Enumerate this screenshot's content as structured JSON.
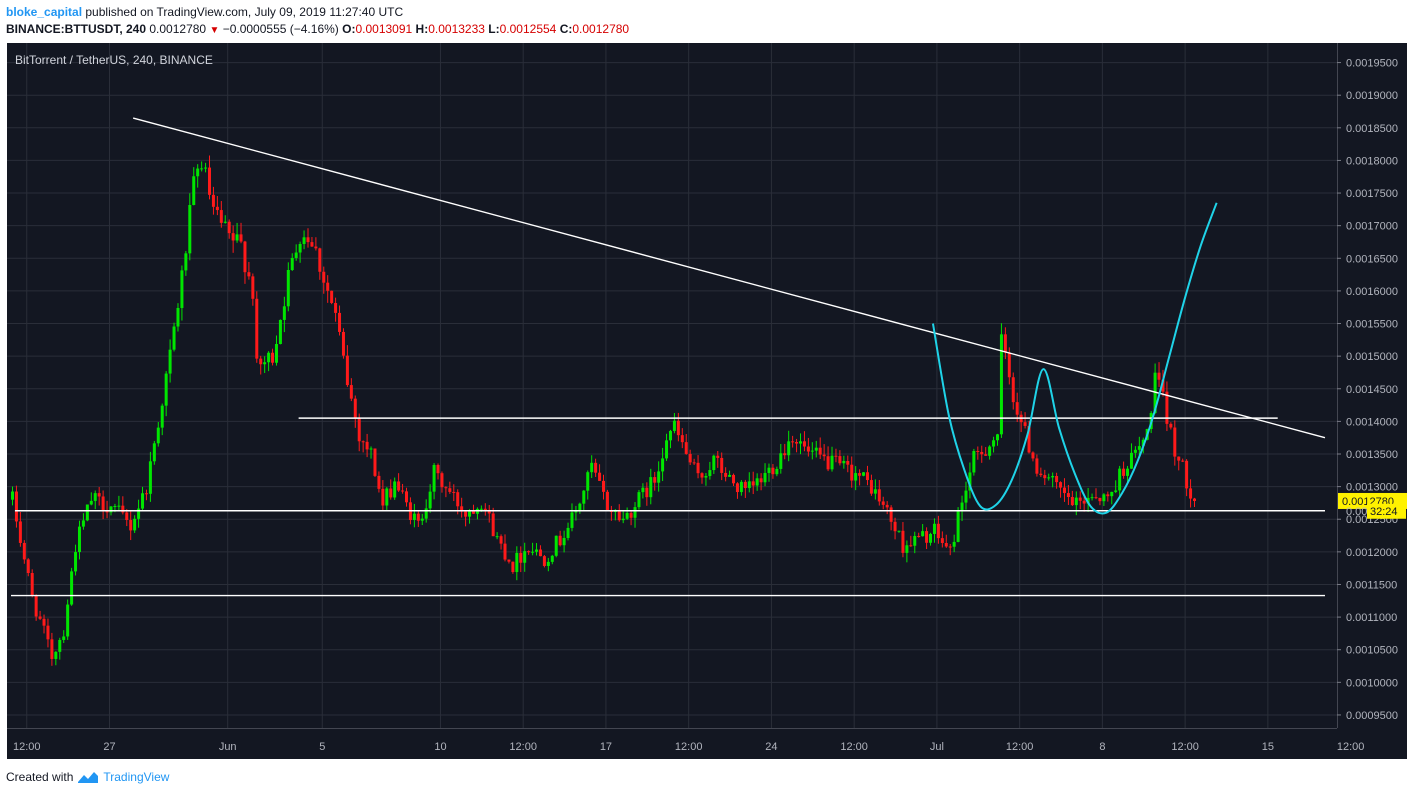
{
  "header": {
    "author": "bloke_capital",
    "published_text": "published on TradingView.com, July 09, 2019 11:27:40 UTC",
    "symbol": "BINANCE:BTTUSDT, 240",
    "last": "0.0012780",
    "change_arrow": "▼",
    "change": "−0.0000555 (−4.16%)",
    "o_label": "O:",
    "o_value": "0.0013091",
    "h_label": "H:",
    "h_value": "0.0013233",
    "l_label": "L:",
    "l_value": "0.0012554",
    "c_label": "C:",
    "c_value": "0.0012780"
  },
  "footer": {
    "created_with": "Created with",
    "brand": "TradingView",
    "logo_icon": "tradingview-logo-icon"
  },
  "colors": {
    "background": "#131722",
    "grid": "#2a2e39",
    "up": "#00e600",
    "down": "#ff1a1a",
    "trendline": "#ffffff",
    "curve": "#1fd3e8",
    "price_label_bg": "#fff200",
    "axis_text": "#b2b5be"
  },
  "chart_data": {
    "type": "candlestick",
    "title": "BitTorrent / TetherUS, 240, BINANCE",
    "ylim": [
      0.00093,
      0.00198
    ],
    "y_ticks": [
      "0.0019500",
      "0.0019000",
      "0.0018500",
      "0.0018000",
      "0.0017500",
      "0.0017000",
      "0.0016500",
      "0.0016000",
      "0.0015500",
      "0.0015000",
      "0.0014500",
      "0.0014000",
      "0.0013500",
      "0.0013000",
      "0.0012500",
      "0.0012000",
      "0.0011500",
      "0.0011000",
      "0.0010500",
      "0.0010000",
      "0.0009500"
    ],
    "x_ticks": [
      "12:00",
      "27",
      "Jun",
      "5",
      "10",
      "12:00",
      "17",
      "12:00",
      "24",
      "12:00",
      "Jul",
      "12:00",
      "8",
      "12:00",
      "15",
      "12:00"
    ],
    "last_price_label": "0.0012780",
    "countdown_label": "32:24",
    "partial_axis_label": "0.00",
    "anchors": [
      {
        "i": 0,
        "p": 0.00128
      },
      {
        "i": 5,
        "p": 0.00113
      },
      {
        "i": 10,
        "p": 0.00104
      },
      {
        "i": 13,
        "p": 0.00108
      },
      {
        "i": 16,
        "p": 0.00121
      },
      {
        "i": 20,
        "p": 0.00128
      },
      {
        "i": 25,
        "p": 0.00127
      },
      {
        "i": 30,
        "p": 0.00124
      },
      {
        "i": 34,
        "p": 0.0013
      },
      {
        "i": 37,
        "p": 0.0014
      },
      {
        "i": 40,
        "p": 0.0015
      },
      {
        "i": 43,
        "p": 0.00162
      },
      {
        "i": 46,
        "p": 0.00176
      },
      {
        "i": 48,
        "p": 0.0018
      },
      {
        "i": 51,
        "p": 0.00172
      },
      {
        "i": 55,
        "p": 0.00168
      },
      {
        "i": 58,
        "p": 0.00167
      },
      {
        "i": 61,
        "p": 0.0016
      },
      {
        "i": 62,
        "p": 0.00148
      },
      {
        "i": 66,
        "p": 0.0015
      },
      {
        "i": 70,
        "p": 0.00162
      },
      {
        "i": 73,
        "p": 0.00169
      },
      {
        "i": 76,
        "p": 0.00168
      },
      {
        "i": 79,
        "p": 0.00162
      },
      {
        "i": 82,
        "p": 0.00156
      },
      {
        "i": 85,
        "p": 0.00146
      },
      {
        "i": 88,
        "p": 0.00138
      },
      {
        "i": 91,
        "p": 0.00135
      },
      {
        "i": 94,
        "p": 0.00127
      },
      {
        "i": 97,
        "p": 0.00131
      },
      {
        "i": 100,
        "p": 0.00127
      },
      {
        "i": 103,
        "p": 0.00124
      },
      {
        "i": 107,
        "p": 0.00132
      },
      {
        "i": 111,
        "p": 0.00129
      },
      {
        "i": 115,
        "p": 0.00126
      },
      {
        "i": 119,
        "p": 0.00128
      },
      {
        "i": 123,
        "p": 0.00122
      },
      {
        "i": 127,
        "p": 0.00118
      },
      {
        "i": 131,
        "p": 0.00121
      },
      {
        "i": 135,
        "p": 0.00119
      },
      {
        "i": 139,
        "p": 0.00122
      },
      {
        "i": 143,
        "p": 0.00126
      },
      {
        "i": 147,
        "p": 0.00133
      },
      {
        "i": 151,
        "p": 0.00127
      },
      {
        "i": 155,
        "p": 0.00125
      },
      {
        "i": 159,
        "p": 0.00128
      },
      {
        "i": 163,
        "p": 0.00131
      },
      {
        "i": 166,
        "p": 0.00138
      },
      {
        "i": 168,
        "p": 0.00139
      },
      {
        "i": 171,
        "p": 0.00135
      },
      {
        "i": 174,
        "p": 0.00131
      },
      {
        "i": 178,
        "p": 0.00134
      },
      {
        "i": 182,
        "p": 0.00131
      },
      {
        "i": 186,
        "p": 0.00129
      },
      {
        "i": 190,
        "p": 0.00131
      },
      {
        "i": 194,
        "p": 0.00134
      },
      {
        "i": 198,
        "p": 0.00138
      },
      {
        "i": 202,
        "p": 0.00135
      },
      {
        "i": 206,
        "p": 0.00134
      },
      {
        "i": 210,
        "p": 0.00133
      },
      {
        "i": 214,
        "p": 0.00132
      },
      {
        "i": 218,
        "p": 0.0013
      },
      {
        "i": 222,
        "p": 0.00126
      },
      {
        "i": 226,
        "p": 0.00121
      },
      {
        "i": 230,
        "p": 0.00122
      },
      {
        "i": 234,
        "p": 0.00123
      },
      {
        "i": 238,
        "p": 0.0012
      },
      {
        "i": 241,
        "p": 0.00128
      },
      {
        "i": 244,
        "p": 0.00134
      },
      {
        "i": 247,
        "p": 0.00136
      },
      {
        "i": 250,
        "p": 0.00138
      },
      {
        "i": 251,
        "p": 0.00152
      },
      {
        "i": 254,
        "p": 0.00144
      },
      {
        "i": 257,
        "p": 0.00138
      },
      {
        "i": 260,
        "p": 0.00133
      },
      {
        "i": 263,
        "p": 0.00131
      },
      {
        "i": 266,
        "p": 0.00129
      },
      {
        "i": 270,
        "p": 0.00127
      },
      {
        "i": 274,
        "p": 0.00129
      },
      {
        "i": 278,
        "p": 0.00128
      },
      {
        "i": 282,
        "p": 0.00133
      },
      {
        "i": 285,
        "p": 0.00135
      },
      {
        "i": 288,
        "p": 0.00138
      },
      {
        "i": 290,
        "p": 0.00147
      },
      {
        "i": 292,
        "p": 0.00143
      },
      {
        "i": 294,
        "p": 0.00138
      },
      {
        "i": 296,
        "p": 0.00134
      },
      {
        "i": 298,
        "p": 0.00131
      },
      {
        "i": 300,
        "p": 0.00128
      }
    ],
    "drawings": {
      "descending_trendline": [
        [
          "2019-05-28",
          0.001865
        ],
        [
          "2019-07-17 10:00",
          0.001375
        ]
      ],
      "horizontal_levels": [
        {
          "price": 0.001405,
          "from": "2019-06-04 00:00",
          "to": "2019-07-15 10:00"
        },
        {
          "price": 0.001263,
          "from": "2019-05-23 00:00",
          "to": "2019-07-17 10:00"
        },
        {
          "price": 0.001133,
          "from": "2019-05-22 20:00",
          "to": "2019-07-17 10:00"
        }
      ],
      "projection_curve": [
        [
          "2019-06-30 20:00",
          0.00155
        ],
        [
          "2019-07-01 12:00",
          0.00141
        ],
        [
          "2019-07-02 04:00",
          0.001325
        ],
        [
          "2019-07-02 20:00",
          0.00127
        ],
        [
          "2019-07-03 12:00",
          0.001272
        ],
        [
          "2019-07-04 04:00",
          0.00131
        ],
        [
          "2019-07-04 20:00",
          0.00138
        ],
        [
          "2019-07-05 12:00",
          0.00148
        ],
        [
          "2019-07-06 04:00",
          0.00139
        ],
        [
          "2019-07-06 20:00",
          0.00132
        ],
        [
          "2019-07-07 12:00",
          0.00127
        ],
        [
          "2019-07-08 04:00",
          0.00126
        ],
        [
          "2019-07-08 20:00",
          0.00129
        ],
        [
          "2019-07-09 12:00",
          0.00134
        ],
        [
          "2019-07-10 04:00",
          0.00141
        ],
        [
          "2019-07-10 20:00",
          0.0015
        ],
        [
          "2019-07-11 12:00",
          0.00159
        ],
        [
          "2019-07-12 04:00",
          0.00167
        ],
        [
          "2019-07-12 20:00",
          0.001735
        ]
      ]
    }
  }
}
